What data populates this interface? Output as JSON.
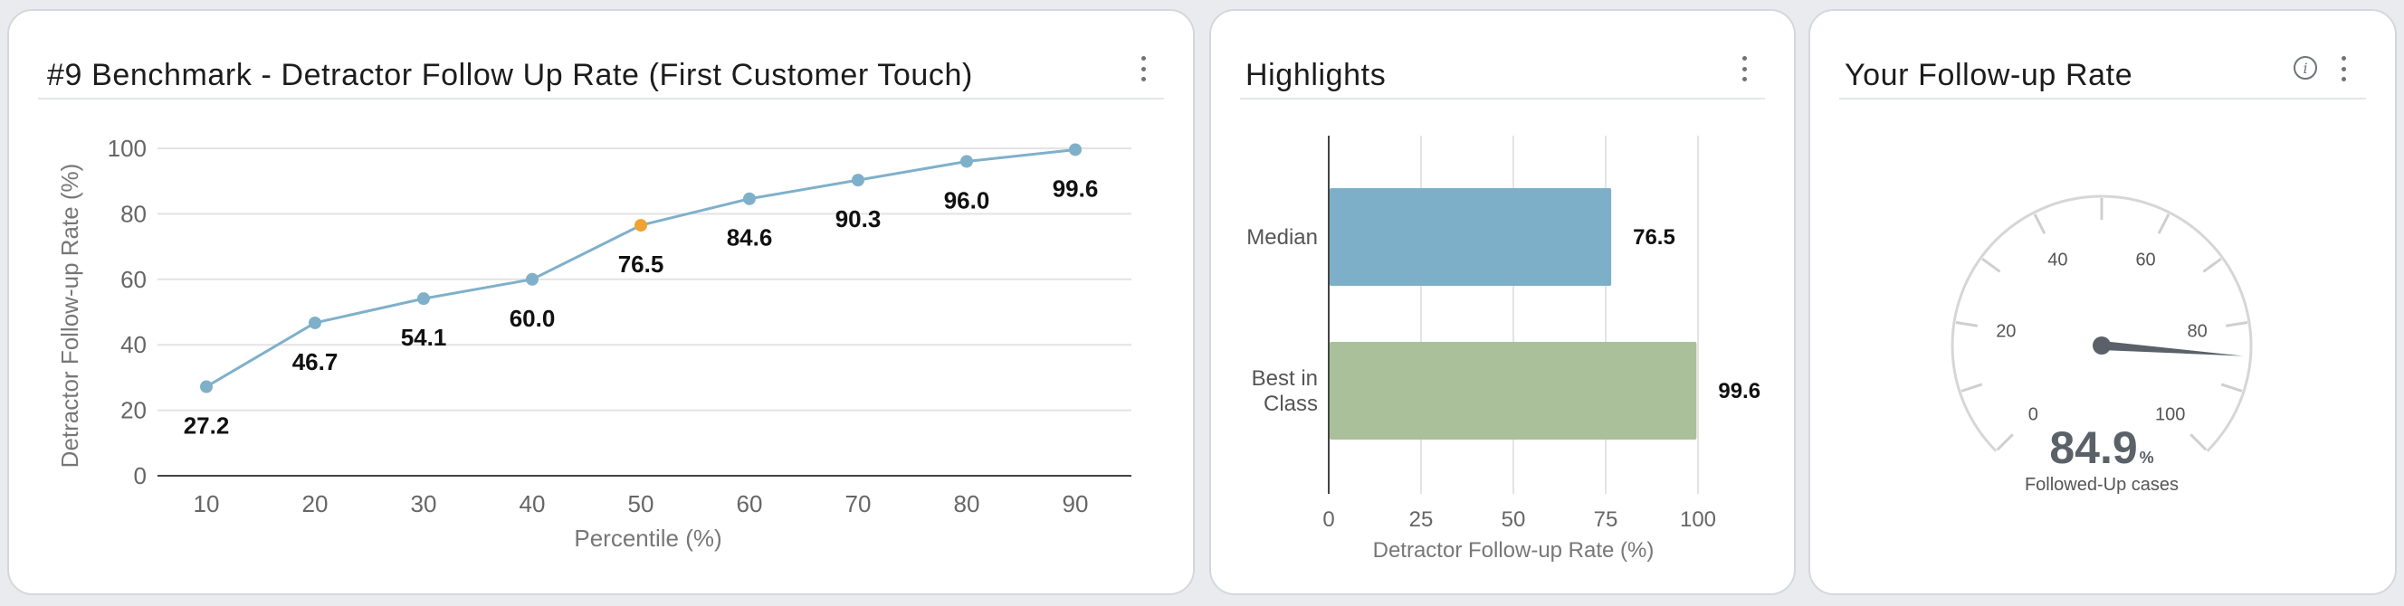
{
  "colors": {
    "line": "#7fb0ca",
    "point": "#7fb0ca",
    "highlight_point": "#f0a234",
    "median_bar": "#7eafc8",
    "best_bar": "#a9c09a",
    "gauge_needle": "#5b6168",
    "gauge_value": "#5b6168"
  },
  "benchmark": {
    "title": "#9 Benchmark - Detractor Follow Up Rate (First Customer Touch)"
  },
  "highlights": {
    "title": "Highlights"
  },
  "followup": {
    "title": "Your Follow-up Rate",
    "value": "84.9",
    "unit": "%",
    "caption": "Followed-Up cases",
    "gauge_min": 0,
    "gauge_max": 100,
    "gauge_labels": [
      "0",
      "20",
      "40",
      "60",
      "80",
      "100"
    ],
    "gauge_label_values": [
      0,
      20,
      40,
      60,
      80,
      100
    ],
    "needle_value": 84.9
  },
  "chart_data": [
    {
      "type": "line",
      "title": "#9 Benchmark - Detractor Follow Up Rate (First Customer Touch)",
      "xlabel": "Percentile (%)",
      "ylabel": "Detractor Follow-up Rate (%)",
      "x": [
        10,
        20,
        30,
        40,
        50,
        60,
        70,
        80,
        90
      ],
      "x_labels": [
        "10",
        "20",
        "30",
        "40",
        "50",
        "60",
        "70",
        "80",
        "90"
      ],
      "values": [
        27.2,
        46.7,
        54.1,
        60.0,
        76.5,
        84.6,
        90.3,
        96.0,
        99.6
      ],
      "value_labels": [
        "27.2",
        "46.7",
        "54.1",
        "60.0",
        "76.5",
        "84.6",
        "90.3",
        "96.0",
        "99.6"
      ],
      "highlight_index": 4,
      "ylim": [
        0,
        100
      ],
      "y_ticks": [
        0,
        20,
        40,
        60,
        80,
        100
      ],
      "y_tick_labels": [
        "0",
        "20",
        "40",
        "60",
        "80",
        "100"
      ],
      "grid": true
    },
    {
      "type": "bar",
      "orientation": "horizontal",
      "title": "Highlights",
      "categories": [
        [
          "Median"
        ],
        [
          "Best in",
          "Class"
        ]
      ],
      "values": [
        76.5,
        99.6
      ],
      "value_labels": [
        "76.5",
        "99.6"
      ],
      "xlabel": "Detractor Follow-up Rate (%)",
      "xlim": [
        0,
        100
      ],
      "x_ticks": [
        0,
        25,
        50,
        75,
        100
      ],
      "x_tick_labels": [
        "0",
        "25",
        "50",
        "75",
        "100"
      ],
      "grid": true
    }
  ]
}
